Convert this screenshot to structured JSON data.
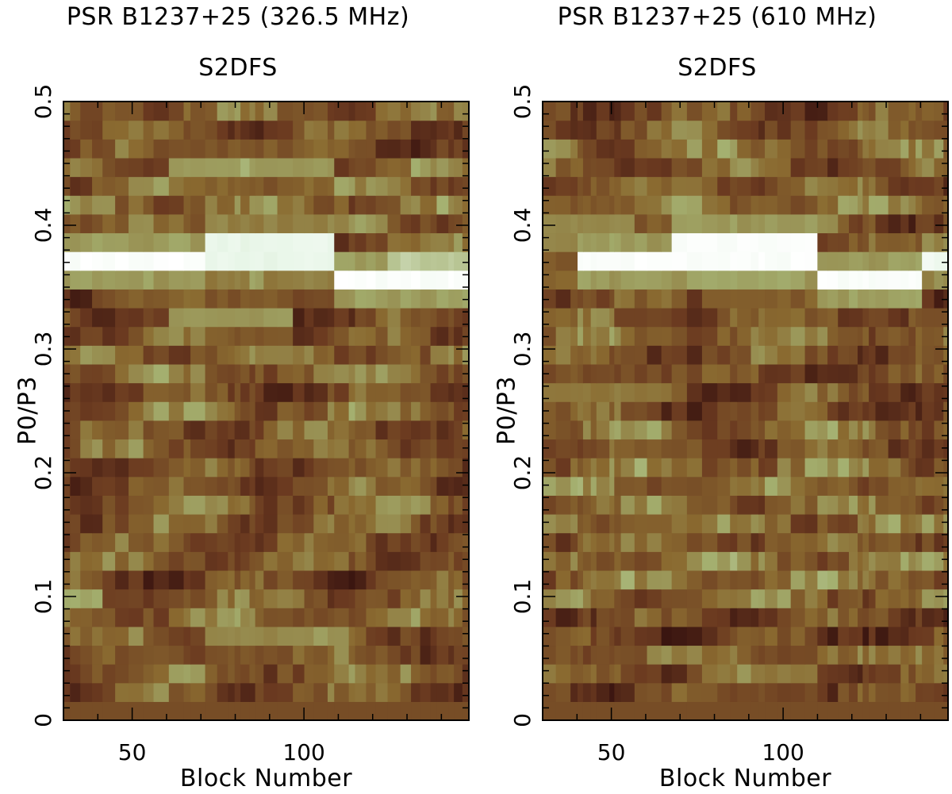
{
  "chart_data": [
    {
      "type": "heatmap",
      "title": "PSR B1237+25 (326.5 MHz)",
      "subtitle": "S2DFS",
      "xlabel": "Block Number",
      "ylabel": "P0/P3",
      "xlim": [
        30,
        148
      ],
      "ylim": [
        0,
        0.5
      ],
      "xticks": [
        "50",
        "100"
      ],
      "yticks": [
        "0",
        "0.1",
        "0.2",
        "0.3",
        "0.4",
        "0.5"
      ],
      "colormap": [
        "#3a1510",
        "#6b3a20",
        "#8a6a30",
        "#a4b070",
        "#e8f6e8",
        "#ffffff"
      ],
      "ridges": [
        {
          "y": 0.367,
          "x_from": 30,
          "x_to": 70,
          "intensity": 1.0
        },
        {
          "y": 0.38,
          "x_from": 70,
          "x_to": 108,
          "intensity": 0.85
        },
        {
          "y": 0.352,
          "x_from": 108,
          "x_to": 148,
          "intensity": 1.0
        },
        {
          "y": 0.367,
          "x_from": 125,
          "x_to": 148,
          "intensity": 0.7
        },
        {
          "y": 0.447,
          "x_from": 60,
          "x_to": 108,
          "intensity": 0.55
        },
        {
          "y": 0.32,
          "x_from": 60,
          "x_to": 95,
          "intensity": 0.55
        },
        {
          "y": 0.103,
          "x_from": 30,
          "x_to": 40,
          "intensity": 0.6
        },
        {
          "y": 0.073,
          "x_from": 70,
          "x_to": 110,
          "intensity": 0.5
        }
      ]
    },
    {
      "type": "heatmap",
      "title": "PSR B1237+25 (610 MHz)",
      "subtitle": "S2DFS",
      "xlabel": "Block Number",
      "ylabel": "P0/P3",
      "xlim": [
        30,
        148
      ],
      "ylim": [
        0,
        0.5
      ],
      "xticks": [
        "50",
        "100"
      ],
      "yticks": [
        "0",
        "0.1",
        "0.2",
        "0.3",
        "0.4",
        "0.5"
      ],
      "colormap": [
        "#3a1510",
        "#6b3a20",
        "#8a6a30",
        "#a4b070",
        "#e8f6e8",
        "#ffffff"
      ],
      "ridges": [
        {
          "y": 0.367,
          "x_from": 40,
          "x_to": 68,
          "intensity": 1.0
        },
        {
          "y": 0.38,
          "x_from": 68,
          "x_to": 110,
          "intensity": 1.0
        },
        {
          "y": 0.352,
          "x_from": 110,
          "x_to": 140,
          "intensity": 1.0
        },
        {
          "y": 0.367,
          "x_from": 140,
          "x_to": 148,
          "intensity": 0.9
        },
        {
          "y": 0.352,
          "x_from": 78,
          "x_to": 108,
          "intensity": 0.6
        },
        {
          "y": 0.395,
          "x_from": 30,
          "x_to": 55,
          "intensity": 0.5
        },
        {
          "y": 0.26,
          "x_from": 30,
          "x_to": 65,
          "intensity": 0.45
        },
        {
          "y": 0.043,
          "x_from": 78,
          "x_to": 110,
          "intensity": 0.45
        }
      ]
    }
  ]
}
